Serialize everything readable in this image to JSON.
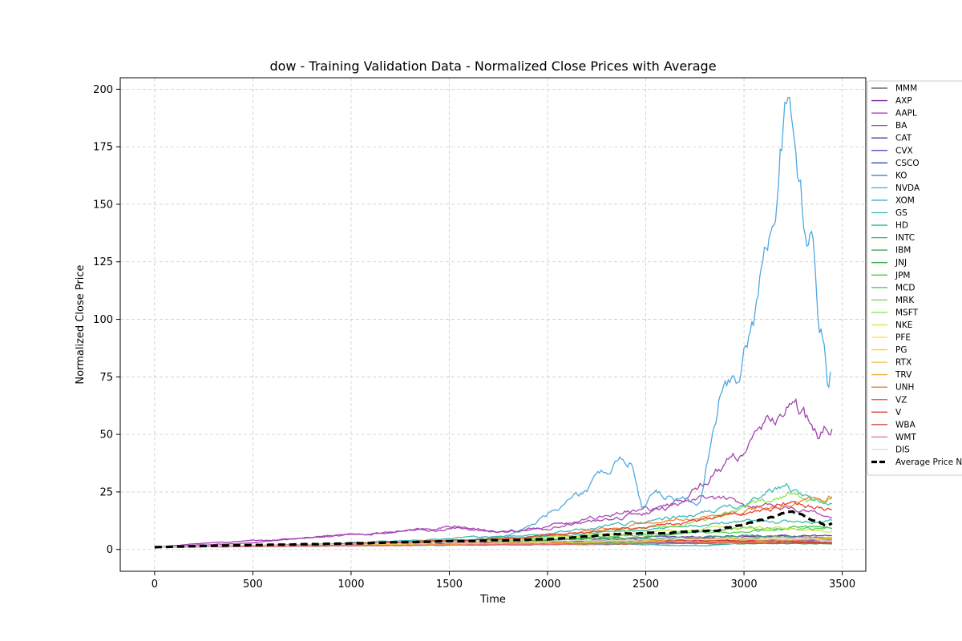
{
  "chart_data": {
    "type": "line",
    "title": "dow - Training Validation Data - Normalized Close Prices with Average",
    "xlabel": "Time",
    "ylabel": "Normalized Close Price",
    "xlim": [
      -175,
      3620
    ],
    "ylim": [
      -9.5,
      205
    ],
    "xticks": [
      0,
      500,
      1000,
      1500,
      2000,
      2500,
      3000,
      3500
    ],
    "yticks": [
      0,
      25,
      50,
      75,
      100,
      125,
      150,
      175,
      200
    ],
    "grid": true,
    "legend_position": "right-outside-top",
    "series": [
      {
        "name": "MMM",
        "color": "#4d4d4d",
        "values": [
          [
            0,
            1
          ],
          [
            800,
            1.8
          ],
          [
            1600,
            2.3
          ],
          [
            2400,
            2.8
          ],
          [
            3000,
            3.2
          ],
          [
            3450,
            2.6
          ]
        ]
      },
      {
        "name": "AXP",
        "color": "#7b2d9e",
        "values": [
          [
            0,
            1
          ],
          [
            800,
            1.5
          ],
          [
            1600,
            2.3
          ],
          [
            2400,
            3.5
          ],
          [
            3000,
            5.5
          ],
          [
            3450,
            5.0
          ]
        ]
      },
      {
        "name": "AAPL",
        "color": "#9b3aaa",
        "values": [
          [
            0,
            1
          ],
          [
            300,
            3
          ],
          [
            600,
            4
          ],
          [
            900,
            6
          ],
          [
            1200,
            7
          ],
          [
            1500,
            9
          ],
          [
            1800,
            8
          ],
          [
            2000,
            10
          ],
          [
            2300,
            13
          ],
          [
            2500,
            16
          ],
          [
            2700,
            23
          ],
          [
            2790,
            29
          ],
          [
            2900,
            37
          ],
          [
            3000,
            44
          ],
          [
            3100,
            51
          ],
          [
            3230,
            63
          ],
          [
            3300,
            58
          ],
          [
            3380,
            48
          ],
          [
            3430,
            52
          ],
          [
            3450,
            54
          ]
        ]
      },
      {
        "name": "BA",
        "color": "#a243b0",
        "values": [
          [
            0,
            1
          ],
          [
            400,
            2.5
          ],
          [
            800,
            5
          ],
          [
            1200,
            7.5
          ],
          [
            1500,
            10
          ],
          [
            1800,
            8
          ],
          [
            2000,
            9
          ],
          [
            2200,
            13
          ],
          [
            2430,
            17
          ],
          [
            2600,
            18
          ],
          [
            2800,
            22
          ],
          [
            3000,
            20
          ],
          [
            3200,
            19
          ],
          [
            3450,
            14
          ]
        ]
      },
      {
        "name": "CAT",
        "color": "#5b3aa8",
        "values": [
          [
            0,
            1
          ],
          [
            800,
            2
          ],
          [
            1600,
            3
          ],
          [
            2400,
            5
          ],
          [
            3000,
            6
          ],
          [
            3450,
            6
          ]
        ]
      },
      {
        "name": "CVX",
        "color": "#3b3bc0",
        "values": [
          [
            0,
            1
          ],
          [
            800,
            2
          ],
          [
            1600,
            2.5
          ],
          [
            2400,
            3
          ],
          [
            3000,
            3.5
          ],
          [
            3450,
            4
          ]
        ]
      },
      {
        "name": "CSCO",
        "color": "#3048c8",
        "values": [
          [
            0,
            1
          ],
          [
            800,
            1.5
          ],
          [
            1600,
            2
          ],
          [
            2400,
            2.5
          ],
          [
            3000,
            3.5
          ],
          [
            3450,
            3.2
          ]
        ]
      },
      {
        "name": "KO",
        "color": "#2f6fd0",
        "values": [
          [
            0,
            1
          ],
          [
            800,
            1.5
          ],
          [
            1600,
            2
          ],
          [
            2400,
            2.5
          ],
          [
            3000,
            3
          ],
          [
            3450,
            3
          ]
        ]
      },
      {
        "name": "NVDA",
        "color": "#47a3df",
        "values": [
          [
            0,
            1
          ],
          [
            800,
            1.5
          ],
          [
            1500,
            3
          ],
          [
            1800,
            6
          ],
          [
            1900,
            10
          ],
          [
            2000,
            15
          ],
          [
            2100,
            20
          ],
          [
            2200,
            26
          ],
          [
            2300,
            35
          ],
          [
            2420,
            40
          ],
          [
            2480,
            18
          ],
          [
            2550,
            25
          ],
          [
            2650,
            22
          ],
          [
            2780,
            20
          ],
          [
            2850,
            55
          ],
          [
            2900,
            78
          ],
          [
            2980,
            80
          ],
          [
            3050,
            100
          ],
          [
            3100,
            120
          ],
          [
            3150,
            130
          ],
          [
            3200,
            180
          ],
          [
            3230,
            195
          ],
          [
            3260,
            175
          ],
          [
            3300,
            150
          ],
          [
            3340,
            140
          ],
          [
            3380,
            100
          ],
          [
            3410,
            90
          ],
          [
            3430,
            70
          ],
          [
            3445,
            80
          ]
        ]
      },
      {
        "name": "XOM",
        "color": "#3aa6d0",
        "values": [
          [
            0,
            1
          ],
          [
            800,
            1.5
          ],
          [
            1600,
            2
          ],
          [
            2400,
            2.2
          ],
          [
            2800,
            1.5
          ],
          [
            3000,
            3
          ],
          [
            3450,
            3.5
          ]
        ]
      },
      {
        "name": "GS",
        "color": "#36b5b5",
        "values": [
          [
            0,
            1
          ],
          [
            800,
            2
          ],
          [
            1600,
            5
          ],
          [
            2000,
            7
          ],
          [
            2400,
            11
          ],
          [
            2800,
            16
          ],
          [
            3000,
            20
          ],
          [
            3220,
            28
          ],
          [
            3350,
            22
          ],
          [
            3450,
            20
          ]
        ]
      },
      {
        "name": "HD",
        "color": "#2fb8a0",
        "values": [
          [
            0,
            1
          ],
          [
            800,
            2
          ],
          [
            1600,
            4
          ],
          [
            2400,
            8
          ],
          [
            3000,
            12
          ],
          [
            3450,
            12
          ]
        ]
      },
      {
        "name": "INTC",
        "color": "#3aa98a",
        "values": [
          [
            0,
            1
          ],
          [
            800,
            1.5
          ],
          [
            1600,
            2.5
          ],
          [
            2400,
            4
          ],
          [
            3000,
            6
          ],
          [
            3450,
            5
          ]
        ]
      },
      {
        "name": "IBM",
        "color": "#2e9e48",
        "values": [
          [
            0,
            1
          ],
          [
            800,
            1.5
          ],
          [
            1600,
            2
          ],
          [
            2400,
            2.5
          ],
          [
            3000,
            2.5
          ],
          [
            3450,
            2.5
          ]
        ]
      },
      {
        "name": "JNJ",
        "color": "#36ac36",
        "values": [
          [
            0,
            1
          ],
          [
            800,
            1.5
          ],
          [
            1600,
            2.5
          ],
          [
            2400,
            3.5
          ],
          [
            3000,
            4.5
          ],
          [
            3450,
            4.5
          ]
        ]
      },
      {
        "name": "JPM",
        "color": "#3fc03f",
        "values": [
          [
            0,
            1
          ],
          [
            800,
            2
          ],
          [
            1600,
            3
          ],
          [
            2400,
            5
          ],
          [
            3000,
            9
          ],
          [
            3450,
            10
          ]
        ]
      },
      {
        "name": "MCD",
        "color": "#4fd04f",
        "values": [
          [
            0,
            1
          ],
          [
            800,
            2
          ],
          [
            1600,
            3
          ],
          [
            2400,
            6
          ],
          [
            3000,
            8
          ],
          [
            3450,
            9
          ]
        ]
      },
      {
        "name": "MRK",
        "color": "#62da4f",
        "values": [
          [
            0,
            1
          ],
          [
            800,
            1.5
          ],
          [
            1600,
            2.5
          ],
          [
            2400,
            3
          ],
          [
            3000,
            4
          ],
          [
            3450,
            5
          ]
        ]
      },
      {
        "name": "MSFT",
        "color": "#86e04a",
        "values": [
          [
            0,
            1
          ],
          [
            800,
            2
          ],
          [
            1600,
            3
          ],
          [
            2000,
            5
          ],
          [
            2400,
            8
          ],
          [
            2800,
            12
          ],
          [
            3000,
            18
          ],
          [
            3220,
            24
          ],
          [
            3350,
            21
          ],
          [
            3450,
            21
          ]
        ]
      },
      {
        "name": "NKE",
        "color": "#c8e84c",
        "values": [
          [
            0,
            1
          ],
          [
            800,
            2
          ],
          [
            1600,
            4
          ],
          [
            2400,
            7
          ],
          [
            3000,
            10
          ],
          [
            3450,
            8
          ]
        ]
      },
      {
        "name": "PFE",
        "color": "#e8e84c",
        "values": [
          [
            0,
            1
          ],
          [
            800,
            1.5
          ],
          [
            1600,
            2
          ],
          [
            2400,
            2.5
          ],
          [
            3000,
            3
          ],
          [
            3450,
            3
          ]
        ]
      },
      {
        "name": "PG",
        "color": "#f0d040",
        "values": [
          [
            0,
            1
          ],
          [
            800,
            1.5
          ],
          [
            1600,
            2.5
          ],
          [
            2400,
            3.5
          ],
          [
            3000,
            4.5
          ],
          [
            3450,
            4.5
          ]
        ]
      },
      {
        "name": "RTX",
        "color": "#f0c040",
        "values": [
          [
            0,
            1
          ],
          [
            800,
            1.5
          ],
          [
            1600,
            2.5
          ],
          [
            2400,
            3.5
          ],
          [
            3000,
            4
          ],
          [
            3450,
            4
          ]
        ]
      },
      {
        "name": "TRV",
        "color": "#f3a838",
        "values": [
          [
            0,
            1
          ],
          [
            800,
            1.8
          ],
          [
            1600,
            3
          ],
          [
            2400,
            4
          ],
          [
            3000,
            5
          ],
          [
            3450,
            5
          ]
        ]
      },
      {
        "name": "UNH",
        "color": "#ef7f2a",
        "values": [
          [
            0,
            1
          ],
          [
            800,
            2
          ],
          [
            1600,
            4
          ],
          [
            2000,
            6
          ],
          [
            2400,
            10
          ],
          [
            2800,
            14
          ],
          [
            3000,
            17
          ],
          [
            3200,
            20
          ],
          [
            3450,
            24
          ]
        ]
      },
      {
        "name": "VZ",
        "color": "#e6502f",
        "values": [
          [
            0,
            1
          ],
          [
            800,
            1.5
          ],
          [
            1600,
            2
          ],
          [
            2400,
            2.5
          ],
          [
            3000,
            3
          ],
          [
            3450,
            2.8
          ]
        ]
      },
      {
        "name": "V",
        "color": "#e03a30",
        "values": [
          [
            0,
            1
          ],
          [
            800,
            2
          ],
          [
            1600,
            4
          ],
          [
            2000,
            6
          ],
          [
            2400,
            9
          ],
          [
            2800,
            13
          ],
          [
            3000,
            16
          ],
          [
            3200,
            19
          ],
          [
            3450,
            18
          ]
        ]
      },
      {
        "name": "WBA",
        "color": "#c8303a",
        "values": [
          [
            0,
            1
          ],
          [
            800,
            2
          ],
          [
            1600,
            3
          ],
          [
            2400,
            4
          ],
          [
            3000,
            4
          ],
          [
            3450,
            3
          ]
        ]
      },
      {
        "name": "WMT",
        "color": "#e07080",
        "values": [
          [
            0,
            1
          ],
          [
            800,
            1.5
          ],
          [
            1600,
            2
          ],
          [
            2400,
            2.5
          ],
          [
            3000,
            3.5
          ],
          [
            3450,
            4
          ]
        ]
      },
      {
        "name": "DIS",
        "color": "#dddddd",
        "values": [
          [
            0,
            1
          ],
          [
            800,
            2
          ],
          [
            1600,
            3
          ],
          [
            2400,
            4
          ],
          [
            3000,
            5
          ],
          [
            3450,
            4
          ]
        ]
      }
    ],
    "average": {
      "name": "Average Price N",
      "color": "#000000",
      "values": [
        [
          0,
          1
        ],
        [
          300,
          1.6
        ],
        [
          600,
          2
        ],
        [
          900,
          2.4
        ],
        [
          1200,
          3
        ],
        [
          1500,
          3.6
        ],
        [
          1800,
          3.9
        ],
        [
          2000,
          4.5
        ],
        [
          2200,
          5.5
        ],
        [
          2400,
          7
        ],
        [
          2600,
          7
        ],
        [
          2780,
          8
        ],
        [
          2850,
          8
        ],
        [
          3000,
          11
        ],
        [
          3100,
          13
        ],
        [
          3220,
          16
        ],
        [
          3300,
          15
        ],
        [
          3380,
          12
        ],
        [
          3420,
          10
        ],
        [
          3450,
          11
        ]
      ]
    }
  }
}
